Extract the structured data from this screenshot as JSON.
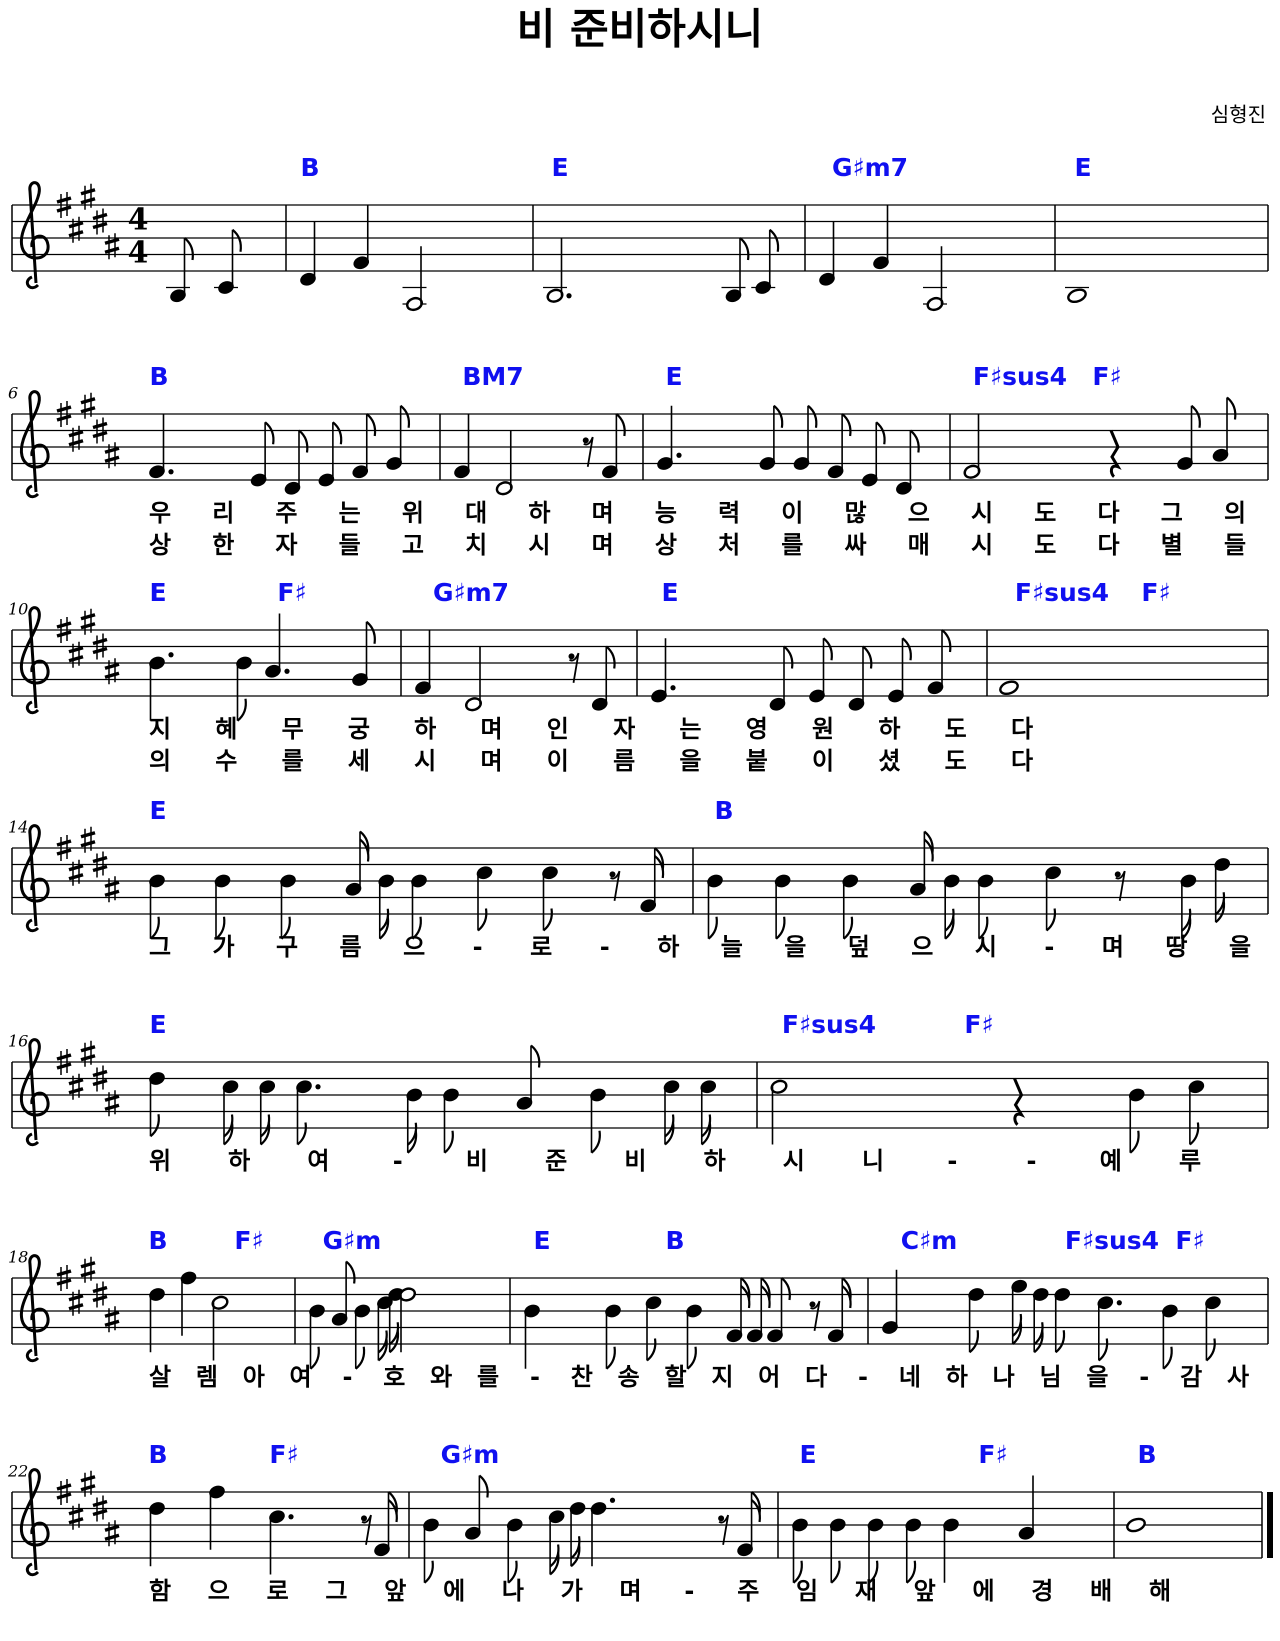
{
  "title": "비 준비하시니",
  "composer": "심형진",
  "time_signature": {
    "numerator": 4,
    "denominator": 4
  },
  "systems": [
    {
      "chords": [
        "B",
        "E",
        "G♯m7",
        "E"
      ]
    },
    {
      "number": "6",
      "chords": [
        "B",
        "BM7",
        "E",
        "F♯sus4",
        "F♯"
      ],
      "lyrics": [
        [
          "우",
          "리",
          "주",
          "는",
          "위",
          "대",
          "하",
          "며",
          "능",
          "력",
          "이",
          "많",
          "으",
          "시",
          "도",
          "다",
          "그",
          "의"
        ],
        [
          "상",
          "한",
          "자",
          "들",
          "고",
          "치",
          "시",
          "며",
          "상",
          "처",
          "를",
          "싸",
          "매",
          "시",
          "도",
          "다",
          "별",
          "들"
        ]
      ]
    },
    {
      "number": "10",
      "chords": [
        "E",
        "F♯",
        "G♯m7",
        "E",
        "F♯sus4",
        "F♯"
      ],
      "lyrics": [
        [
          "지",
          "혜",
          "무",
          "궁",
          "하",
          "며",
          "인",
          "자",
          "는",
          "영",
          "원",
          "하",
          "도",
          "다"
        ],
        [
          "의",
          "수",
          "를",
          "세",
          "시",
          "며",
          "이",
          "름",
          "을",
          "붙",
          "이",
          "셨",
          "도",
          "다"
        ]
      ]
    },
    {
      "number": "14",
      "chords": [
        "E",
        "B"
      ],
      "lyrics": [
        [
          "그",
          "가",
          "구",
          "름",
          "으",
          "-",
          "로",
          "-",
          "하",
          "늘",
          "을",
          "덮",
          "으",
          "시",
          "-",
          "며",
          "땅",
          "을"
        ]
      ]
    },
    {
      "number": "16",
      "chords": [
        "E",
        "F♯sus4",
        "F♯"
      ],
      "lyrics": [
        [
          "위",
          "하",
          "여",
          "-",
          "비",
          "준",
          "비",
          "하",
          "시",
          "니",
          "-",
          "-",
          "예",
          "루"
        ]
      ]
    },
    {
      "number": "18",
      "chords": [
        "B",
        "F♯",
        "G♯m",
        "E",
        "B",
        "C♯m",
        "F♯sus4",
        "F♯"
      ],
      "lyrics": [
        [
          "살",
          "렘",
          "아",
          "여",
          "-",
          "호",
          "와",
          "를",
          "-",
          "찬",
          "송",
          "할",
          "지",
          "어",
          "다",
          "-",
          "네",
          "하",
          "나",
          "님",
          "을",
          "-",
          "감",
          "사"
        ]
      ]
    },
    {
      "number": "22",
      "chords": [
        "B",
        "F♯",
        "G♯m",
        "E",
        "F♯",
        "B"
      ],
      "lyrics": [
        [
          "함",
          "으",
          "로",
          "그",
          "앞",
          "에",
          "나",
          "가",
          "며",
          "-",
          "주",
          "임",
          "재",
          "앞",
          "에",
          "경",
          "배",
          "해"
        ]
      ]
    }
  ]
}
